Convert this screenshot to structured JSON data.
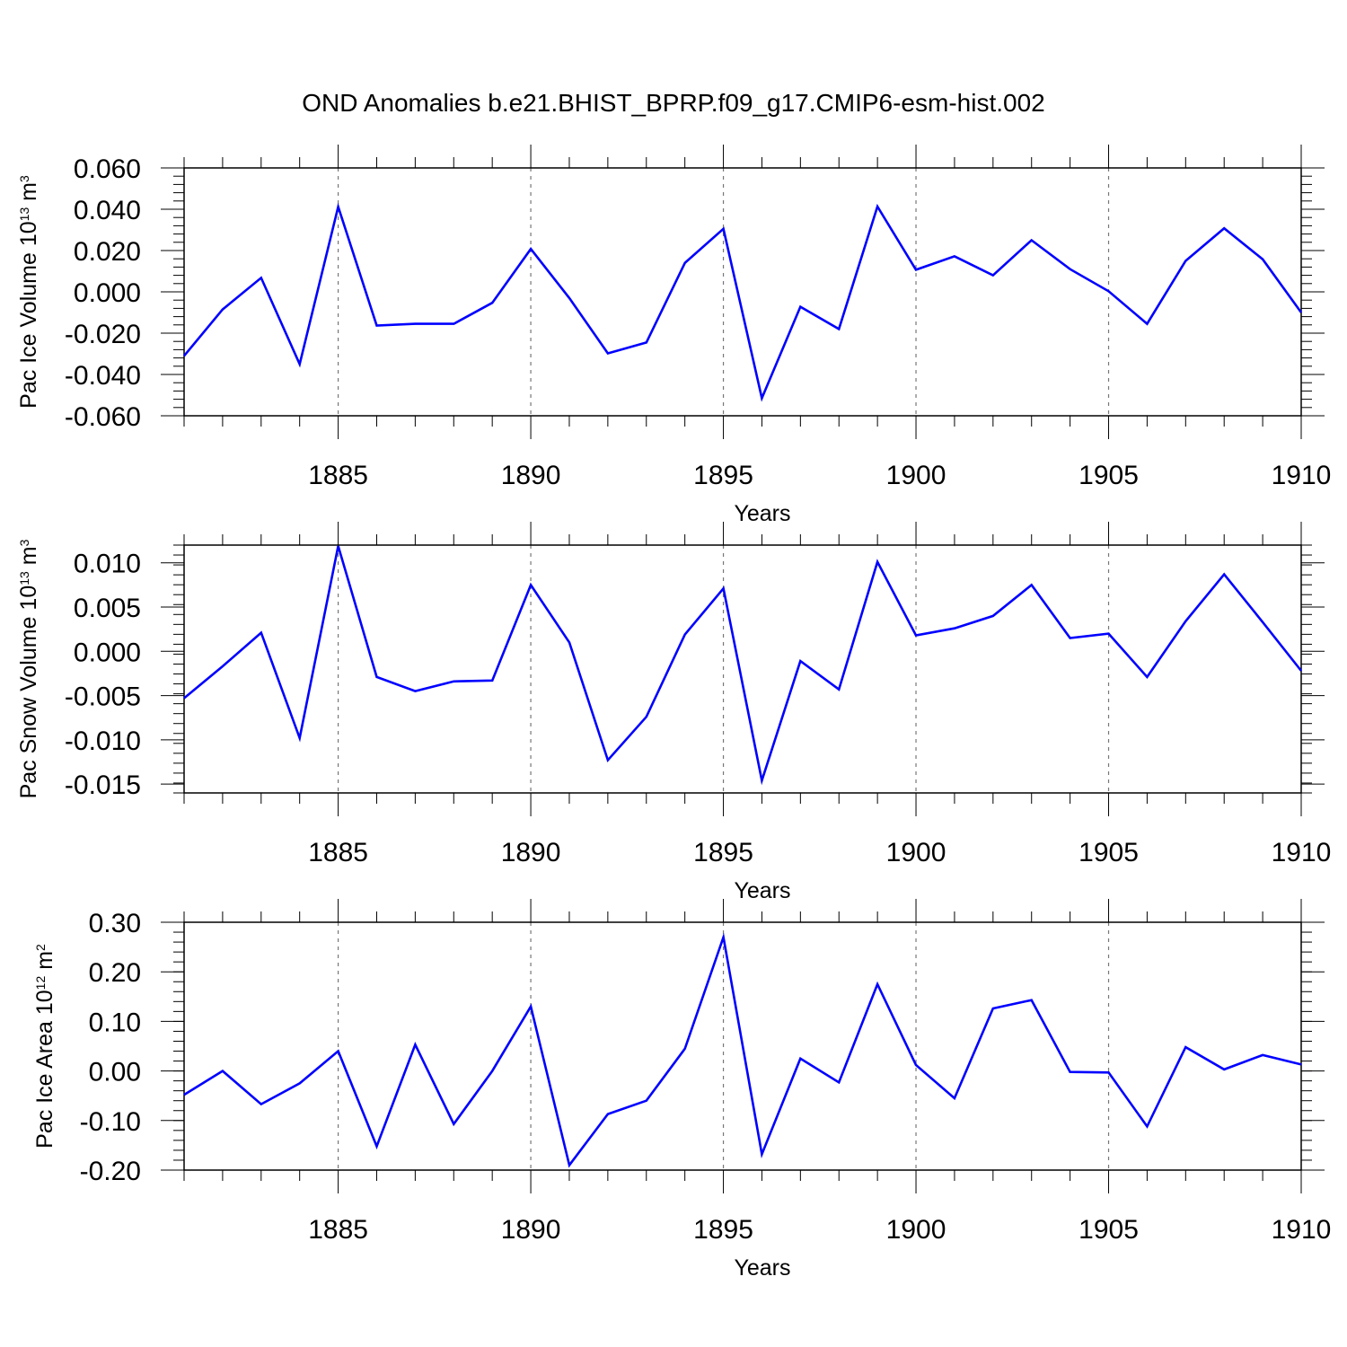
{
  "title": "OND Anomalies b.e21.BHIST_BPRP.f09_g17.CMIP6-esm-hist.002",
  "colors": {
    "line": "#0000ff",
    "axis": "#000000",
    "grid": "#777777"
  },
  "chart_data": [
    {
      "type": "line",
      "ylabel_prefix": "Pac Ice Volume 10",
      "ylabel_exp": "13",
      "ylabel_suffix": " m",
      "ylabel_unit_exp": "3",
      "xlabel": "Years",
      "xlim": [
        1881,
        1910
      ],
      "ylim": [
        -0.06,
        0.06
      ],
      "xticks": [
        "1885",
        "1890",
        "1895",
        "1900",
        "1905",
        "1910"
      ],
      "yticks": [
        "0.060",
        "0.040",
        "0.020",
        "0.000",
        "-0.020",
        "-0.040",
        "-0.060"
      ],
      "grid_x": [
        1885,
        1890,
        1895,
        1900,
        1905
      ],
      "x": [
        1881,
        1882,
        1883,
        1884,
        1885,
        1886,
        1887,
        1888,
        1889,
        1890,
        1891,
        1892,
        1893,
        1894,
        1895,
        1896,
        1897,
        1898,
        1899,
        1900,
        1901,
        1902,
        1903,
        1904,
        1905,
        1906,
        1907,
        1908,
        1909,
        1910
      ],
      "values": [
        -0.031,
        -0.0085,
        0.0068,
        -0.035,
        0.0412,
        -0.0163,
        -0.0155,
        -0.0155,
        -0.0053,
        0.0208,
        -0.003,
        -0.0298,
        -0.0245,
        0.014,
        0.0305,
        -0.0515,
        -0.0072,
        -0.018,
        0.0413,
        0.0107,
        0.0172,
        0.008,
        0.025,
        0.011,
        0.0003,
        -0.0155,
        0.015,
        0.0308,
        0.0158,
        -0.01
      ]
    },
    {
      "type": "line",
      "ylabel_prefix": "Pac Snow Volume 10",
      "ylabel_exp": "13",
      "ylabel_suffix": " m",
      "ylabel_unit_exp": "3",
      "xlabel": "Years",
      "xlim": [
        1881,
        1910
      ],
      "ylim": [
        -0.016,
        0.012
      ],
      "xticks": [
        "1885",
        "1890",
        "1895",
        "1900",
        "1905",
        "1910"
      ],
      "yticks": [
        "0.010",
        "0.005",
        "0.000",
        "-0.005",
        "-0.010",
        "-0.015"
      ],
      "grid_x": [
        1885,
        1890,
        1895,
        1900,
        1905
      ],
      "x": [
        1881,
        1882,
        1883,
        1884,
        1885,
        1886,
        1887,
        1888,
        1889,
        1890,
        1891,
        1892,
        1893,
        1894,
        1895,
        1896,
        1897,
        1898,
        1899,
        1900,
        1901,
        1902,
        1903,
        1904,
        1905,
        1906,
        1907,
        1908,
        1909,
        1910
      ],
      "values": [
        -0.0053,
        -0.0017,
        0.0021,
        -0.0098,
        0.0119,
        -0.0029,
        -0.0045,
        -0.0034,
        -0.0033,
        0.0075,
        0.001,
        -0.0123,
        -0.0074,
        0.0019,
        0.0071,
        -0.0146,
        -0.0011,
        -0.0043,
        0.0101,
        0.0018,
        0.0026,
        0.004,
        0.0075,
        0.0015,
        0.002,
        -0.0029,
        0.0034,
        0.0087,
        0.0033,
        -0.0022
      ]
    },
    {
      "type": "line",
      "ylabel_prefix": "Pac Ice Area 10",
      "ylabel_exp": "12",
      "ylabel_suffix": " m",
      "ylabel_unit_exp": "2",
      "xlabel": "Years",
      "xlim": [
        1881,
        1910
      ],
      "ylim": [
        -0.2,
        0.3
      ],
      "xticks": [
        "1885",
        "1890",
        "1895",
        "1900",
        "1905",
        "1910"
      ],
      "yticks": [
        "0.30",
        "0.20",
        "0.10",
        "0.00",
        "-0.10",
        "-0.20"
      ],
      "grid_x": [
        1885,
        1890,
        1895,
        1900,
        1905
      ],
      "x": [
        1881,
        1882,
        1883,
        1884,
        1885,
        1886,
        1887,
        1888,
        1889,
        1890,
        1891,
        1892,
        1893,
        1894,
        1895,
        1896,
        1897,
        1898,
        1899,
        1900,
        1901,
        1902,
        1903,
        1904,
        1905,
        1906,
        1907,
        1908,
        1909,
        1910
      ],
      "values": [
        -0.048,
        0.0,
        -0.067,
        -0.025,
        0.04,
        -0.152,
        0.053,
        -0.107,
        0.0,
        0.13,
        -0.19,
        -0.087,
        -0.06,
        0.045,
        0.27,
        -0.168,
        0.025,
        -0.023,
        0.175,
        0.012,
        -0.055,
        0.126,
        0.143,
        -0.002,
        -0.003,
        -0.112,
        0.048,
        0.003,
        0.032,
        0.013
      ]
    }
  ]
}
